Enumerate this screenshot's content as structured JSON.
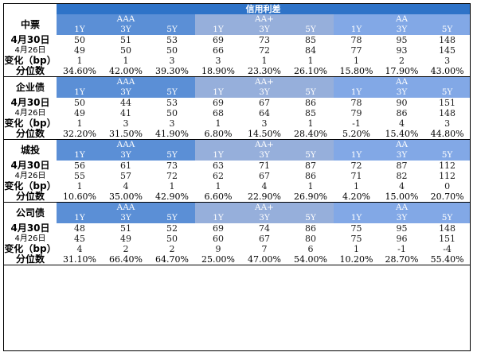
{
  "title": "信用利差",
  "ratings": [
    "AAA",
    "AA+",
    "AA"
  ],
  "tenors": [
    "1Y",
    "3Y",
    "5Y"
  ],
  "row_labels": {
    "date1": "4月30日",
    "date2": "4月26日",
    "change": "变化（bp）",
    "pct": "分位数"
  },
  "sections": [
    {
      "name": "中票",
      "d1": [
        "50",
        "51",
        "53",
        "69",
        "73",
        "85",
        "78",
        "95",
        "148"
      ],
      "d2": [
        "49",
        "50",
        "50",
        "66",
        "72",
        "84",
        "77",
        "93",
        "145"
      ],
      "chg": [
        "1",
        "1",
        "3",
        "3",
        "1",
        "1",
        "1",
        "2",
        "3"
      ],
      "pct": [
        "34.60%",
        "42.00%",
        "39.30%",
        "18.90%",
        "23.30%",
        "26.10%",
        "15.80%",
        "17.90%",
        "43.00%"
      ]
    },
    {
      "name": "企业债",
      "d1": [
        "50",
        "44",
        "53",
        "69",
        "67",
        "86",
        "78",
        "90",
        "151"
      ],
      "d2": [
        "49",
        "41",
        "50",
        "68",
        "64",
        "85",
        "79",
        "86",
        "148"
      ],
      "chg": [
        "1",
        "3",
        "3",
        "1",
        "3",
        "1",
        "-1",
        "4",
        "3"
      ],
      "pct": [
        "32.20%",
        "31.50%",
        "41.90%",
        "6.80%",
        "14.50%",
        "28.40%",
        "5.20%",
        "15.40%",
        "44.80%"
      ]
    },
    {
      "name": "城投",
      "d1": [
        "56",
        "61",
        "73",
        "63",
        "71",
        "87",
        "72",
        "87",
        "112"
      ],
      "d2": [
        "55",
        "57",
        "72",
        "62",
        "67",
        "86",
        "71",
        "82",
        "112"
      ],
      "chg": [
        "1",
        "4",
        "1",
        "1",
        "4",
        "1",
        "1",
        "4",
        "0"
      ],
      "pct": [
        "10.60%",
        "35.00%",
        "42.90%",
        "6.60%",
        "22.90%",
        "26.90%",
        "4.20%",
        "15.00%",
        "20.70%"
      ]
    },
    {
      "name": "公司债",
      "d1": [
        "48",
        "51",
        "52",
        "69",
        "74",
        "86",
        "75",
        "95",
        "148"
      ],
      "d2": [
        "45",
        "49",
        "50",
        "60",
        "67",
        "80",
        "75",
        "96",
        "151"
      ],
      "chg": [
        "4",
        "2",
        "2",
        "9",
        "7",
        "6",
        "1",
        "-1",
        "-4"
      ],
      "pct": [
        "31.10%",
        "66.40%",
        "64.70%",
        "25.00%",
        "47.00%",
        "54.00%",
        "10.20%",
        "28.70%",
        "55.40%"
      ]
    }
  ]
}
